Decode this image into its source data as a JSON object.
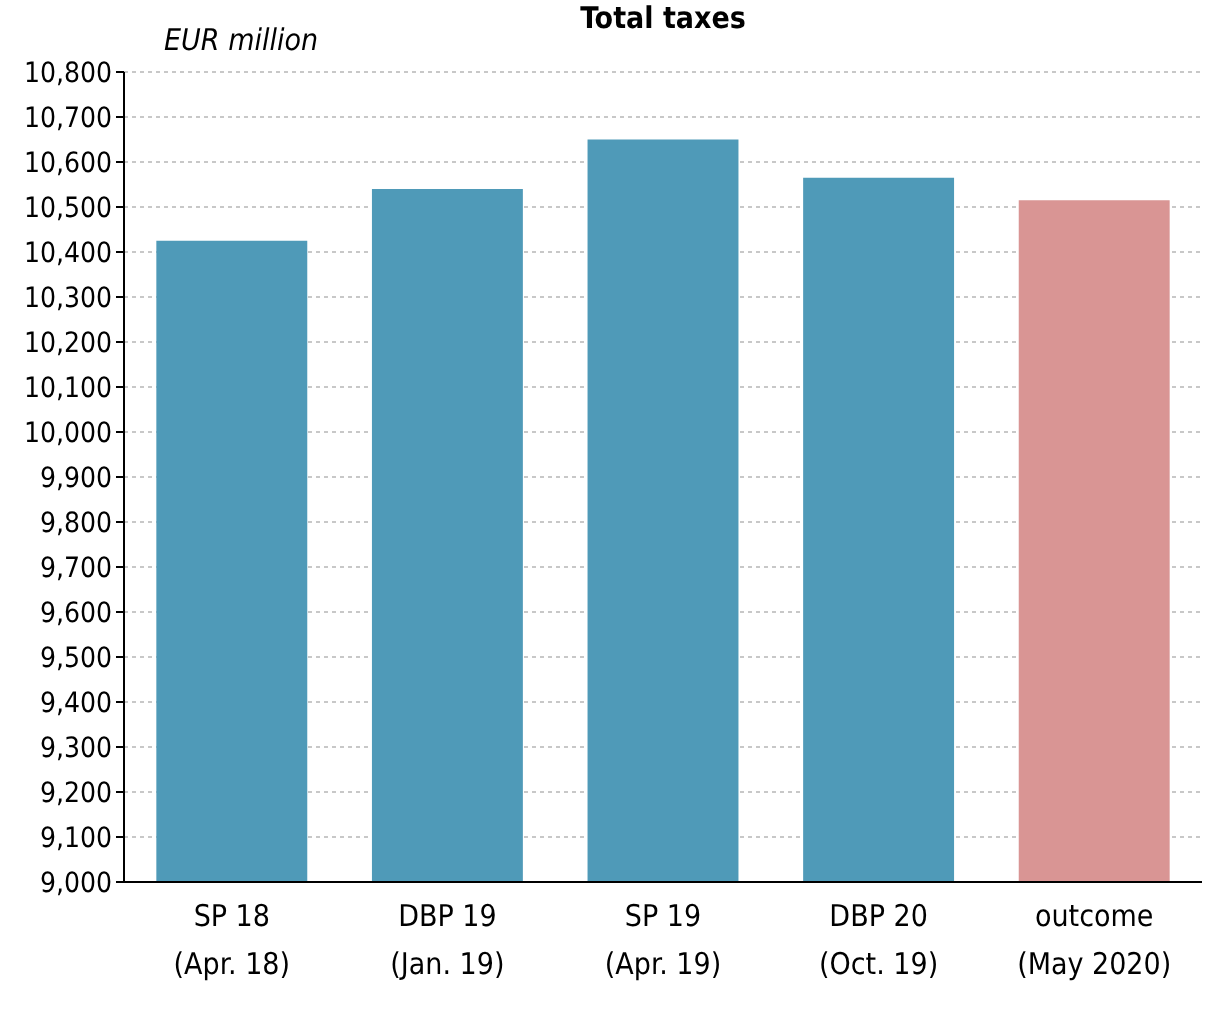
{
  "chart_data": {
    "type": "bar",
    "title": "Total taxes",
    "ylabel": "EUR million",
    "categories": [
      "SP 18\n(Apr. 18)",
      "DBP 19\n(Jan. 19)",
      "SP 19\n(Apr. 19)",
      "DBP 20\n(Oct. 19)",
      "outcome\n(May 2020)"
    ],
    "values": [
      10425,
      10540,
      10650,
      10565,
      10515
    ],
    "colors": [
      "#4f9ab8",
      "#4f9ab8",
      "#4f9ab8",
      "#4f9ab8",
      "#d99594"
    ],
    "ylim": [
      9000,
      10800
    ],
    "yticks": [
      {
        "value": 9000,
        "label": "9,000"
      },
      {
        "value": 9100,
        "label": "9,100"
      },
      {
        "value": 9200,
        "label": "9,200"
      },
      {
        "value": 9300,
        "label": "9,300"
      },
      {
        "value": 9400,
        "label": "9,400"
      },
      {
        "value": 9500,
        "label": "9,500"
      },
      {
        "value": 9600,
        "label": "9,600"
      },
      {
        "value": 9700,
        "label": "9,700"
      },
      {
        "value": 9800,
        "label": "9,800"
      },
      {
        "value": 9900,
        "label": "9,900"
      },
      {
        "value": 10000,
        "label": "10,000"
      },
      {
        "value": 10100,
        "label": "10,100"
      },
      {
        "value": 10200,
        "label": "10,200"
      },
      {
        "value": 10300,
        "label": "10,300"
      },
      {
        "value": 10400,
        "label": "10,400"
      },
      {
        "value": 10500,
        "label": "10,500"
      },
      {
        "value": 10600,
        "label": "10,600"
      },
      {
        "value": 10700,
        "label": "10,700"
      },
      {
        "value": 10800,
        "label": "10,800"
      }
    ],
    "grid": "y"
  }
}
